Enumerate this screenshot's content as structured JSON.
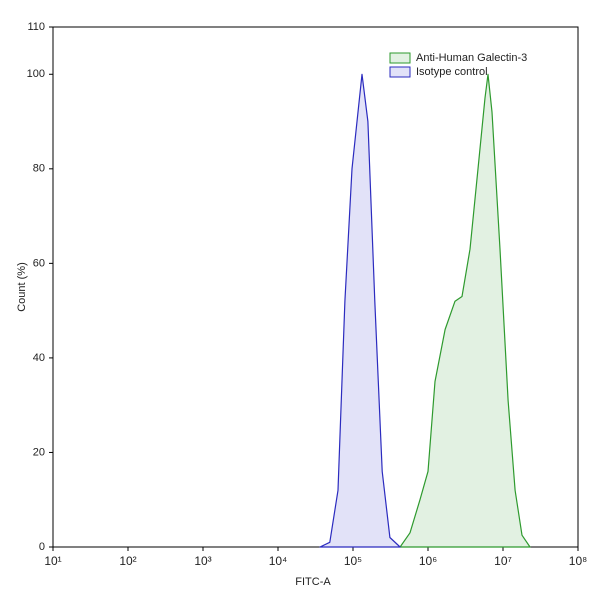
{
  "chart_data": {
    "type": "histogram-line",
    "x_label": "FITC-A",
    "y_label": "Count (%)",
    "x_scale": "log",
    "xlim": [
      10,
      100000000
    ],
    "xticks": [
      {
        "value": 10,
        "label": "10¹"
      },
      {
        "value": 100,
        "label": "10²"
      },
      {
        "value": 1000,
        "label": "10³"
      },
      {
        "value": 10000,
        "label": "10⁴"
      },
      {
        "value": 100000,
        "label": "10⁵"
      },
      {
        "value": 1000000,
        "label": "10⁶"
      },
      {
        "value": 10000000,
        "label": "10⁷"
      },
      {
        "value": 100000000,
        "label": "10⁸"
      }
    ],
    "ylim": [
      0,
      110
    ],
    "yticks": [
      0,
      20,
      40,
      60,
      80,
      100,
      110
    ],
    "legend": "top-right",
    "series": [
      {
        "name": "Anti-Human Galectin-3",
        "color": "#2e9a2e",
        "fill": "#e2f1e2",
        "x": [
          424000,
          575000,
          782000,
          1000000,
          1240000,
          1690000,
          2290000,
          2840000,
          3630000,
          4640000,
          5750000,
          6310000,
          7130000,
          9120000,
          11700000,
          14500000,
          17900000,
          22900000
        ],
        "values": [
          0,
          3,
          10,
          16,
          35,
          46,
          52,
          53,
          63,
          80,
          95,
          100,
          92,
          63,
          31,
          12,
          2.5,
          0
        ]
      },
      {
        "name": "Isotype control",
        "color": "#2b2bbf",
        "fill": "#e2e2f8",
        "x": [
          36300,
          49000,
          63000,
          78000,
          97000,
          132000,
          158000,
          195000,
          245000,
          310000,
          425000
        ],
        "values": [
          0,
          1,
          12,
          52,
          80,
          100,
          90,
          52,
          16,
          2,
          0
        ]
      }
    ]
  }
}
